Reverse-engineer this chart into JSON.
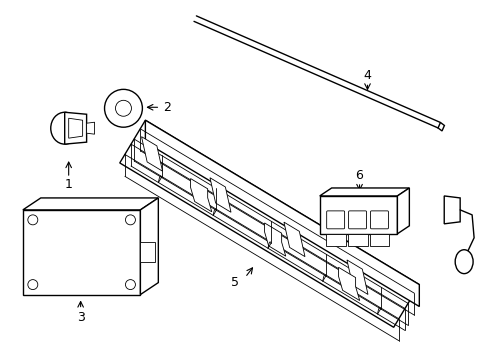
{
  "bg_color": "#ffffff",
  "line_color": "#000000",
  "lw": 1.0,
  "lw_thin": 0.6,
  "label_fs": 9
}
